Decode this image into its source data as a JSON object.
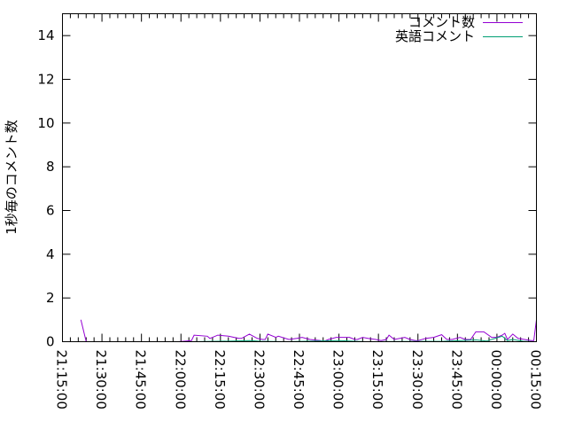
{
  "chart_data": {
    "type": "line",
    "title": "",
    "xlabel": "",
    "ylabel": "1秒毎のコメント数",
    "ylim": [
      0,
      15
    ],
    "yticks": [
      "0",
      "2",
      "4",
      "6",
      "8",
      "10",
      "12",
      "14"
    ],
    "xlim": [
      "21:15:00",
      "00:15:00"
    ],
    "xticks": [
      "21:15:00",
      "21:30:00",
      "21:45:00",
      "22:00:00",
      "22:15:00",
      "22:30:00",
      "22:45:00",
      "23:00:00",
      "23:15:00",
      "23:30:00",
      "23:45:00",
      "00:00:00",
      "00:15:00"
    ],
    "grid": false,
    "legend_position": "top-right",
    "series": [
      {
        "name": "コメント数",
        "color": "#9400d3",
        "points": [
          [
            "21:22",
            1.0
          ],
          [
            "21:24",
            0
          ],
          [
            "21:59",
            0
          ],
          [
            "22:04",
            0.05
          ],
          [
            "22:05",
            0.3
          ],
          [
            "22:10",
            0.25
          ],
          [
            "22:11",
            0.15
          ],
          [
            "22:14",
            0.3
          ],
          [
            "22:18",
            0.25
          ],
          [
            "22:22",
            0.15
          ],
          [
            "22:23",
            0.15
          ],
          [
            "22:26",
            0.35
          ],
          [
            "22:29",
            0.15
          ],
          [
            "22:31",
            0.1
          ],
          [
            "22:32",
            0.1
          ],
          [
            "22:33",
            0.35
          ],
          [
            "22:36",
            0.2
          ],
          [
            "22:37",
            0.25
          ],
          [
            "22:41",
            0.1
          ],
          [
            "22:44",
            0.15
          ],
          [
            "22:46",
            0.2
          ],
          [
            "22:49",
            0.1
          ],
          [
            "22:53",
            0.05
          ],
          [
            "22:54",
            0
          ],
          [
            "22:56",
            0.1
          ],
          [
            "22:59",
            0.2
          ],
          [
            "23:04",
            0.2
          ],
          [
            "23:06",
            0.1
          ],
          [
            "23:07",
            0.1
          ],
          [
            "23:09",
            0.2
          ],
          [
            "23:11",
            0.15
          ],
          [
            "23:14",
            0.1
          ],
          [
            "23:16",
            0.05
          ],
          [
            "23:18",
            0.1
          ],
          [
            "23:19",
            0.3
          ],
          [
            "23:21",
            0.1
          ],
          [
            "23:25",
            0.2
          ],
          [
            "23:27",
            0.1
          ],
          [
            "23:29",
            0.05
          ],
          [
            "23:30",
            0.05
          ],
          [
            "23:33",
            0.15
          ],
          [
            "23:36",
            0.2
          ],
          [
            "23:39",
            0.32
          ],
          [
            "23:41",
            0.1
          ],
          [
            "23:43",
            0.1
          ],
          [
            "23:46",
            0.2
          ],
          [
            "23:48",
            0.1
          ],
          [
            "23:50",
            0.1
          ],
          [
            "23:52",
            0.45
          ],
          [
            "23:55",
            0.45
          ],
          [
            "23:58",
            0.2
          ],
          [
            "00:00",
            0.2
          ],
          [
            "00:02",
            0.3
          ],
          [
            "00:03",
            0.38
          ],
          [
            "00:04",
            0.1
          ],
          [
            "00:06",
            0.35
          ],
          [
            "00:08",
            0.15
          ],
          [
            "00:13",
            0.05
          ],
          [
            "00:14",
            0.05
          ],
          [
            "00:15",
            1.0
          ]
        ]
      },
      {
        "name": "英語コメント",
        "color": "#009e73",
        "points": [
          [
            "22:04",
            0
          ],
          [
            "22:20",
            0.03
          ],
          [
            "22:26",
            0.05
          ],
          [
            "22:30",
            0.02
          ],
          [
            "22:40",
            0
          ],
          [
            "23:00",
            0.05
          ],
          [
            "23:10",
            0
          ],
          [
            "23:40",
            0.02
          ],
          [
            "23:52",
            0.08
          ],
          [
            "23:56",
            0.03
          ],
          [
            "00:02",
            0.25
          ],
          [
            "00:04",
            0.05
          ],
          [
            "00:06",
            0.1
          ],
          [
            "00:10",
            0.02
          ],
          [
            "00:14",
            0
          ]
        ]
      }
    ]
  }
}
